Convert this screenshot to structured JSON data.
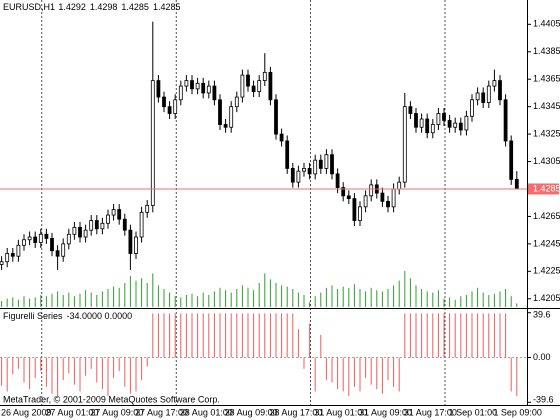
{
  "chart_data": [
    {
      "type": "candlestick",
      "title": "EURUSD,H1",
      "categories": [
        "26 Aug 2009",
        null,
        null,
        null,
        null,
        null,
        null,
        null,
        null,
        "27 Aug 01:00",
        null,
        null,
        null,
        null,
        null,
        null,
        null,
        "27 Aug 09:00",
        null,
        null,
        null,
        null,
        null,
        null,
        null,
        "27 Aug 17:00",
        null,
        null,
        null,
        null,
        null,
        null,
        null,
        "28 Aug 01:00",
        null,
        null,
        null,
        null,
        null,
        null,
        null,
        "28 Aug 09:00",
        null,
        null,
        null,
        null,
        null,
        null,
        null,
        "28 Aug 17:00",
        null,
        null,
        null,
        null,
        null,
        null,
        null,
        "31 Aug 01:00",
        null,
        null,
        null,
        null,
        null,
        null,
        null,
        "31 Aug 09:00",
        null,
        null,
        null,
        null,
        null,
        null,
        null,
        "31 Aug 17:00",
        null,
        null,
        null,
        null,
        null,
        null,
        null,
        "1 Sep 01:00",
        null,
        null,
        null,
        null,
        null,
        null,
        null,
        "1 Sep 09:00",
        null,
        null,
        null,
        null
      ],
      "open": [
        1.4226,
        1.423,
        1.4232,
        1.4238,
        1.4236,
        1.4244,
        1.4248,
        1.425,
        1.4246,
        1.4252,
        1.4249,
        1.424,
        1.4236,
        1.4245,
        1.4252,
        1.4257,
        1.425,
        1.4255,
        1.4262,
        1.4256,
        1.426,
        1.4266,
        1.427,
        1.4263,
        1.4255,
        1.4238,
        1.425,
        1.4268,
        1.4273,
        1.4364,
        1.4352,
        1.4345,
        1.434,
        1.435,
        1.436,
        1.4364,
        1.4358,
        1.4362,
        1.4355,
        1.436,
        1.435,
        1.4332,
        1.433,
        1.4345,
        1.4352,
        1.4368,
        1.436,
        1.4356,
        1.4364,
        1.437,
        1.435,
        1.4325,
        1.432,
        1.43,
        1.429,
        1.4298,
        1.43,
        1.4296,
        1.4306,
        1.43,
        1.431,
        1.4296,
        1.4286,
        1.428,
        1.4278,
        1.4262,
        1.4272,
        1.428,
        1.4288,
        1.4282,
        1.4276,
        1.4272,
        1.4285,
        1.429,
        1.4345,
        1.434,
        1.433,
        1.4336,
        1.4326,
        1.4332,
        1.434,
        1.4335,
        1.433,
        1.4333,
        1.4328,
        1.4338,
        1.435,
        1.4355,
        1.4348,
        1.436,
        1.4364,
        1.435,
        1.432,
        1.4292
      ],
      "high": [
        1.4234,
        1.4236,
        1.4242,
        1.4242,
        1.4248,
        1.4252,
        1.4254,
        1.4254,
        1.4256,
        1.4256,
        1.4253,
        1.4244,
        1.4249,
        1.4256,
        1.4261,
        1.4261,
        1.4259,
        1.4266,
        1.4266,
        1.4264,
        1.427,
        1.4274,
        1.4274,
        1.4267,
        1.4259,
        1.4254,
        1.4272,
        1.4277,
        1.4407,
        1.4368,
        1.4356,
        1.4349,
        1.4354,
        1.4364,
        1.4368,
        1.4368,
        1.4366,
        1.4366,
        1.4364,
        1.4364,
        1.4354,
        1.4336,
        1.4349,
        1.4356,
        1.4372,
        1.4372,
        1.4364,
        1.4368,
        1.4384,
        1.4374,
        1.4354,
        1.4329,
        1.4324,
        1.4304,
        1.4302,
        1.4304,
        1.4304,
        1.431,
        1.431,
        1.4314,
        1.4314,
        1.43,
        1.429,
        1.4284,
        1.4282,
        1.4276,
        1.4284,
        1.4292,
        1.4292,
        1.4286,
        1.428,
        1.4289,
        1.4294,
        1.4355,
        1.4349,
        1.4344,
        1.434,
        1.434,
        1.4336,
        1.4344,
        1.4344,
        1.4339,
        1.4337,
        1.4337,
        1.4342,
        1.4354,
        1.4359,
        1.4359,
        1.4364,
        1.4372,
        1.4368,
        1.4354,
        1.4324,
        1.4298
      ],
      "low": [
        1.4222,
        1.4226,
        1.4228,
        1.4232,
        1.4232,
        1.424,
        1.4244,
        1.4242,
        1.4242,
        1.4245,
        1.4236,
        1.4226,
        1.4232,
        1.4241,
        1.4248,
        1.4246,
        1.4246,
        1.4251,
        1.4252,
        1.4252,
        1.4256,
        1.4262,
        1.4259,
        1.4251,
        1.4226,
        1.4234,
        1.4246,
        1.4264,
        1.4268,
        1.4348,
        1.4341,
        1.4336,
        1.4336,
        1.4346,
        1.4356,
        1.4354,
        1.4354,
        1.4351,
        1.4351,
        1.4346,
        1.4328,
        1.4326,
        1.4326,
        1.4341,
        1.4348,
        1.4356,
        1.4352,
        1.4352,
        1.436,
        1.4346,
        1.4321,
        1.4316,
        1.4296,
        1.4286,
        1.4286,
        1.4294,
        1.4292,
        1.4292,
        1.4296,
        1.4296,
        1.4292,
        1.4282,
        1.4276,
        1.4274,
        1.4258,
        1.4258,
        1.4268,
        1.4276,
        1.4278,
        1.4272,
        1.4268,
        1.4268,
        1.4281,
        1.4286,
        1.4336,
        1.4326,
        1.4326,
        1.4322,
        1.4322,
        1.4328,
        1.4331,
        1.4326,
        1.4326,
        1.4324,
        1.4324,
        1.4334,
        1.4346,
        1.4344,
        1.4344,
        1.4356,
        1.4346,
        1.4316,
        1.4288,
        1.4285
      ],
      "close": [
        1.423,
        1.4232,
        1.4238,
        1.4236,
        1.4244,
        1.4248,
        1.425,
        1.4246,
        1.4252,
        1.4249,
        1.424,
        1.4236,
        1.4245,
        1.4252,
        1.4257,
        1.425,
        1.4255,
        1.4262,
        1.4256,
        1.426,
        1.4266,
        1.427,
        1.4263,
        1.4255,
        1.4238,
        1.425,
        1.4268,
        1.4273,
        1.4364,
        1.4352,
        1.4345,
        1.434,
        1.435,
        1.436,
        1.4364,
        1.4358,
        1.4362,
        1.4355,
        1.436,
        1.435,
        1.4332,
        1.433,
        1.4345,
        1.4352,
        1.4368,
        1.436,
        1.4356,
        1.4364,
        1.437,
        1.435,
        1.4325,
        1.432,
        1.43,
        1.429,
        1.4298,
        1.43,
        1.4296,
        1.4306,
        1.43,
        1.431,
        1.4296,
        1.4286,
        1.428,
        1.4278,
        1.4262,
        1.4272,
        1.428,
        1.4288,
        1.4282,
        1.4276,
        1.4272,
        1.4285,
        1.429,
        1.4345,
        1.434,
        1.433,
        1.4336,
        1.4326,
        1.4332,
        1.434,
        1.4335,
        1.433,
        1.4333,
        1.4328,
        1.4338,
        1.435,
        1.4355,
        1.4348,
        1.436,
        1.4364,
        1.435,
        1.432,
        1.4292,
        1.4285
      ],
      "bull_color": "#ffffff",
      "bear_color": "#000000",
      "price_line_color": "#f26d6d",
      "volume": {
        "color": "#2ea02e",
        "values": [
          600,
          500,
          700,
          800,
          600,
          900,
          700,
          800,
          1000,
          900,
          1100,
          1300,
          1000,
          1200,
          900,
          1100,
          1400,
          1200,
          1000,
          1300,
          1500,
          1700,
          1600,
          2000,
          2600,
          2200,
          2400,
          2000,
          2800,
          1800,
          1500,
          1200,
          900,
          800,
          1000,
          1100,
          900,
          1200,
          1000,
          1300,
          1600,
          1400,
          1200,
          1500,
          1800,
          1600,
          1400,
          2000,
          2800,
          2300,
          2000,
          1800,
          1700,
          1500,
          1200,
          1000,
          400,
          900,
          1200,
          1600,
          1800,
          1500,
          1700,
          1600,
          1900,
          1500,
          1300,
          1600,
          1400,
          1300,
          1500,
          1800,
          2200,
          3000,
          2400,
          1800,
          1500,
          1300,
          1200,
          1400,
          700,
          800,
          600,
          900,
          1000,
          1300,
          1600,
          1200,
          1000,
          1100,
          1300,
          1500,
          900,
          300
        ]
      },
      "ylim": [
        1.4199,
        1.4422
      ],
      "yticks": [
        1.4205,
        1.4225,
        1.4245,
        1.4265,
        1.4285,
        1.4305,
        1.4325,
        1.4345,
        1.4365,
        1.4385,
        1.4405
      ]
    },
    {
      "type": "bar",
      "title": "Figurelli Series",
      "readout": "-34.0000 0.0000",
      "color": "#f25c5c",
      "values": [
        -20,
        -25,
        -30,
        -15,
        -10,
        -22,
        -28,
        -18,
        -12,
        -26,
        -32,
        -34,
        -20,
        -14,
        -24,
        -30,
        -16,
        -10,
        -22,
        -28,
        -34,
        -18,
        -12,
        -26,
        -32,
        -30,
        -20,
        -8,
        39,
        39,
        39,
        39,
        39,
        39,
        39,
        39,
        39,
        39,
        39,
        39,
        39,
        39,
        39,
        39,
        39,
        39,
        39,
        39,
        39,
        39,
        39,
        39,
        39,
        39,
        25,
        -10,
        30,
        -30,
        20,
        -20,
        -22,
        -28,
        -30,
        -34,
        -26,
        -30,
        -18,
        -24,
        -28,
        -32,
        -20,
        -26,
        -30,
        39,
        39,
        39,
        39,
        39,
        39,
        39,
        39,
        39,
        39,
        39,
        39,
        39,
        39,
        39,
        39,
        39,
        39,
        39,
        -30,
        -34
      ],
      "ylim": [
        -42,
        42
      ],
      "yticks": [
        39.6,
        {
          "value": 0,
          "label": "0.00"
        },
        -39.6
      ]
    }
  ],
  "footer": "MetaTrader, © 2001-2009 MetaQuotes Software Corp."
}
